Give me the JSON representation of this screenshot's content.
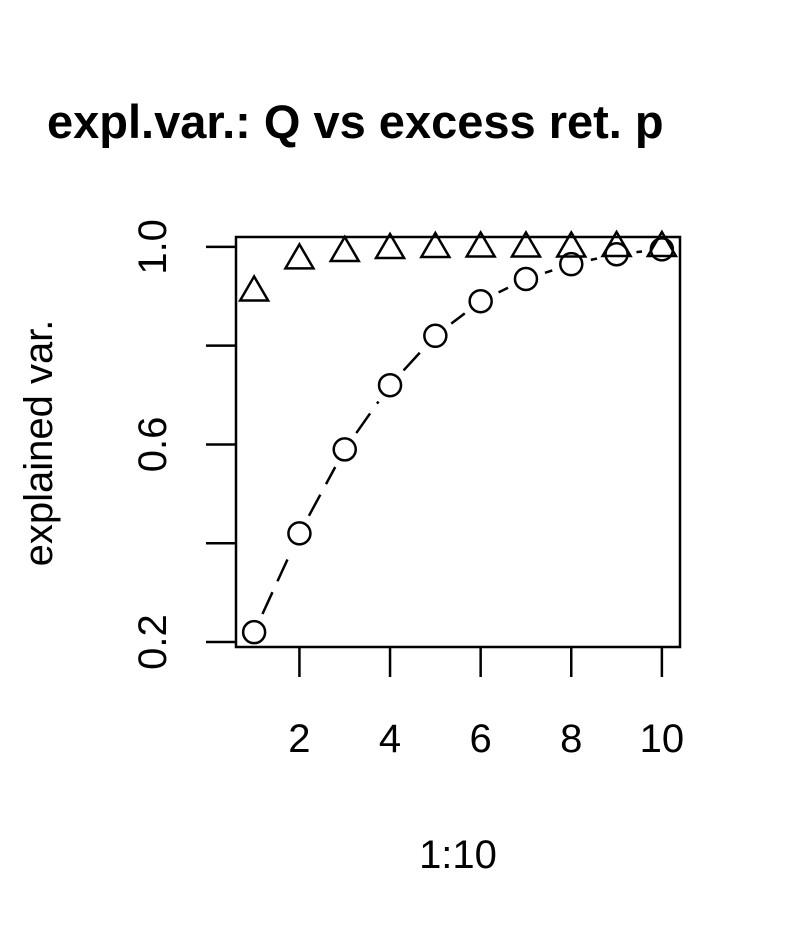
{
  "chart_data": {
    "type": "scatter",
    "title": "expl.var.: Q vs excess ret. p",
    "xlabel": "1:10",
    "ylabel": "explained var.",
    "xlim": [
      0.6,
      10.4
    ],
    "ylim": [
      0.19,
      1.02
    ],
    "x": [
      1,
      2,
      3,
      4,
      5,
      6,
      7,
      8,
      9,
      10
    ],
    "x_tick_labels": [
      {
        "value": 2,
        "label": "2"
      },
      {
        "value": 4,
        "label": "4"
      },
      {
        "value": 6,
        "label": "6"
      },
      {
        "value": 8,
        "label": "8"
      },
      {
        "value": 10,
        "label": "10"
      }
    ],
    "x_ticks": [
      2,
      4,
      6,
      8,
      10
    ],
    "y_tick_labels": [
      {
        "value": 0.2,
        "label": "0.2"
      },
      {
        "value": 0.6,
        "label": "0.6"
      },
      {
        "value": 1.0,
        "label": "1.0"
      }
    ],
    "y_ticks": [
      0.2,
      0.4,
      0.6,
      0.8,
      1.0
    ],
    "series": [
      {
        "marker": "triangle",
        "line": "none",
        "values": [
          0.91,
          0.975,
          0.99,
          0.996,
          0.998,
          0.999,
          0.999,
          0.999,
          1.0,
          1.0
        ]
      },
      {
        "marker": "circle",
        "line": "dashed",
        "values": [
          0.22,
          0.42,
          0.59,
          0.72,
          0.82,
          0.89,
          0.935,
          0.965,
          0.985,
          0.995
        ]
      }
    ]
  }
}
